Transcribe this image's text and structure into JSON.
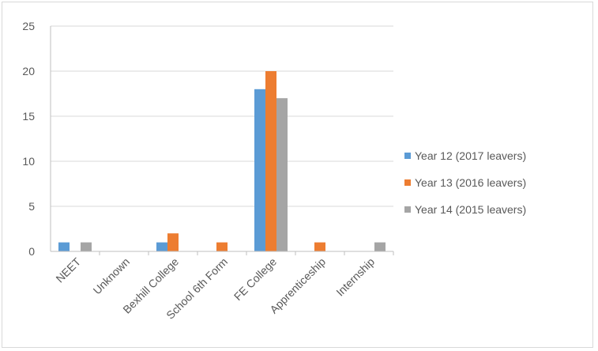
{
  "chart_data": {
    "type": "bar",
    "title": "",
    "xlabel": "",
    "ylabel": "",
    "categories": [
      "NEET",
      "Unknown",
      "Bexhill College",
      "School 6th Form",
      "FE College",
      "Apprenticeship",
      "Internship"
    ],
    "series": [
      {
        "name": "Year 12 (2017 leavers)",
        "color": "#5b9bd5",
        "values": [
          1,
          0,
          1,
          0,
          18,
          0,
          0
        ]
      },
      {
        "name": "Year 13 (2016 leavers)",
        "color": "#ed7d31",
        "values": [
          0,
          0,
          2,
          1,
          20,
          1,
          0
        ]
      },
      {
        "name": "Year 14 (2015 leavers)",
        "color": "#a5a5a5",
        "values": [
          1,
          0,
          0,
          0,
          17,
          0,
          1
        ]
      }
    ],
    "ylim": [
      0,
      25
    ],
    "yticks": [
      0,
      5,
      10,
      15,
      20,
      25
    ],
    "grid": true,
    "legend_position": "right",
    "gridline_color": "#d9d9d9",
    "axis_color": "#bfbfbf"
  }
}
